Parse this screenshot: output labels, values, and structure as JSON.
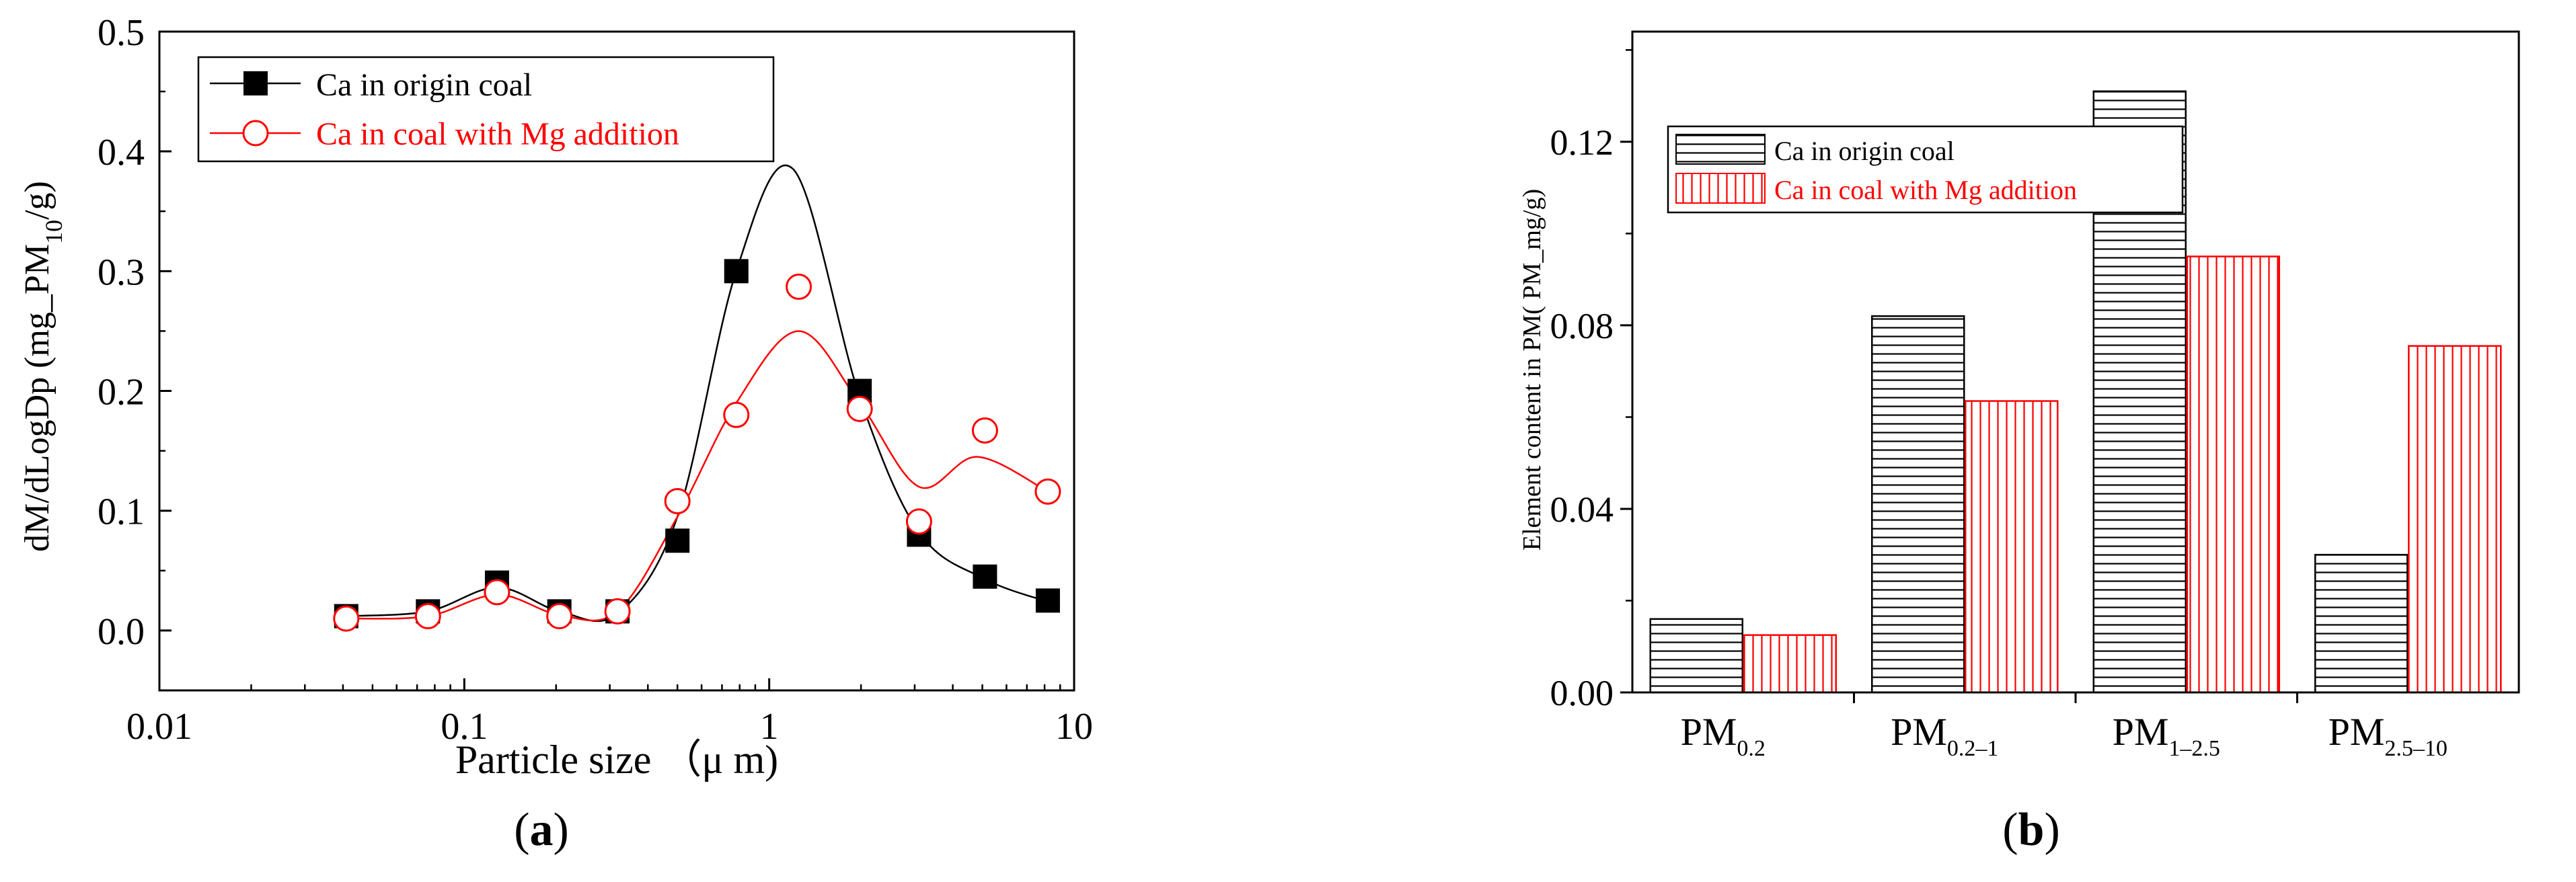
{
  "panels": {
    "a_label": "a",
    "b_label": "b"
  },
  "colors": {
    "origin": "#000000",
    "mg": "#ff0000"
  },
  "chart_data": [
    {
      "type": "scatter",
      "xlabel": "Particle size （μ m)",
      "ylabel_main": "dM/dLogDp (mg_PM",
      "ylabel_sub": "10",
      "ylabel_end": "/g)",
      "x_scale": "log",
      "xlim": [
        0.01,
        10
      ],
      "ylim": [
        -0.05,
        0.5
      ],
      "x_ticks": [
        {
          "value": 0.01,
          "label": "0.01"
        },
        {
          "value": 0.1,
          "label": "0.1"
        },
        {
          "value": 1,
          "label": "1"
        },
        {
          "value": 10,
          "label": "10"
        }
      ],
      "y_ticks": [
        {
          "value": 0.0,
          "label": "0.0"
        },
        {
          "value": 0.1,
          "label": "0.1"
        },
        {
          "value": 0.2,
          "label": "0.2"
        },
        {
          "value": 0.3,
          "label": "0.3"
        },
        {
          "value": 0.4,
          "label": "0.4"
        },
        {
          "value": 0.5,
          "label": "0.5"
        }
      ],
      "legend_position": "top-left",
      "series": [
        {
          "name": "Ca in origin coal",
          "marker": "filled-square",
          "color": "#000000",
          "x": [
            0.041,
            0.076,
            0.128,
            0.205,
            0.318,
            0.5,
            0.78,
            1.98,
            3.1,
            5.1,
            8.2
          ],
          "y": [
            0.012,
            0.016,
            0.04,
            0.016,
            0.016,
            0.075,
            0.3,
            0.2,
            0.08,
            0.045,
            0.025
          ],
          "fit_x": [
            0.041,
            0.076,
            0.128,
            0.205,
            0.318,
            0.5,
            0.78,
            1.2,
            1.98,
            3.1,
            5.1,
            8.2
          ],
          "fit_y": [
            0.012,
            0.016,
            0.036,
            0.016,
            0.014,
            0.095,
            0.3,
            0.385,
            0.195,
            0.082,
            0.043,
            0.024
          ]
        },
        {
          "name": "Ca in coal with Mg addition",
          "marker": "open-circle",
          "color": "#ff0000",
          "x": [
            0.041,
            0.076,
            0.128,
            0.205,
            0.318,
            0.5,
            0.78,
            1.25,
            1.98,
            3.1,
            5.1,
            8.2
          ],
          "y": [
            0.01,
            0.012,
            0.032,
            0.012,
            0.016,
            0.108,
            0.18,
            0.287,
            0.185,
            0.091,
            0.167,
            0.116
          ],
          "fit_x": [
            0.041,
            0.076,
            0.128,
            0.205,
            0.318,
            0.5,
            0.78,
            1.25,
            1.98,
            3.1,
            4.8,
            8.2
          ],
          "fit_y": [
            0.01,
            0.012,
            0.03,
            0.013,
            0.016,
            0.095,
            0.19,
            0.25,
            0.19,
            0.12,
            0.145,
            0.116
          ]
        }
      ]
    },
    {
      "type": "bar",
      "ylabel": "Element content in PM(  PM_mg/g)",
      "ylim": [
        0,
        0.144
      ],
      "y_ticks": [
        {
          "value": 0.0,
          "label": "0.00"
        },
        {
          "value": 0.04,
          "label": "0.04"
        },
        {
          "value": 0.08,
          "label": "0.08"
        },
        {
          "value": 0.12,
          "label": "0.12"
        }
      ],
      "categories": [
        {
          "main": "PM",
          "sub": "0.2"
        },
        {
          "main": "PM",
          "sub": "0.2–1"
        },
        {
          "main": "PM",
          "sub": "1–2.5"
        },
        {
          "main": "PM",
          "sub": "2.5–10"
        }
      ],
      "legend_position": "top-left",
      "series": [
        {
          "name": "Ca in origin coal",
          "pattern": "horizontal-lines",
          "color": "#000000",
          "values": [
            0.016,
            0.082,
            0.131,
            0.03
          ]
        },
        {
          "name": "Ca in coal with Mg addition",
          "pattern": "vertical-lines",
          "color": "#ff0000",
          "values": [
            0.0125,
            0.0635,
            0.095,
            0.0755
          ]
        }
      ]
    }
  ]
}
